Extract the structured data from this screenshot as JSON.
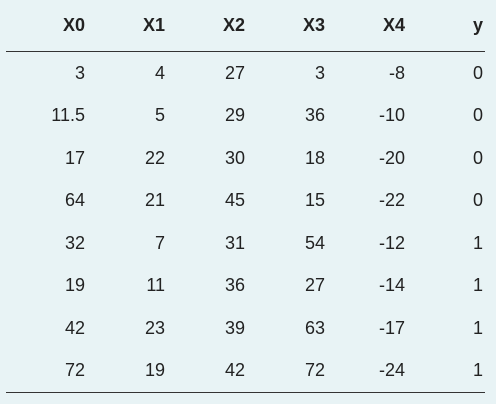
{
  "table": {
    "columns": [
      "X0",
      "X1",
      "X2",
      "X3",
      "X4",
      "y"
    ],
    "rows": [
      [
        "3",
        "4",
        "27",
        "3",
        "-8",
        "0"
      ],
      [
        "11.5",
        "5",
        "29",
        "36",
        "-10",
        "0"
      ],
      [
        "17",
        "22",
        "30",
        "18",
        "-20",
        "0"
      ],
      [
        "64",
        "21",
        "45",
        "15",
        "-22",
        "0"
      ],
      [
        "32",
        "7",
        "31",
        "54",
        "-12",
        "1"
      ],
      [
        "19",
        "11",
        "36",
        "27",
        "-14",
        "1"
      ],
      [
        "42",
        "23",
        "39",
        "63",
        "-17",
        "1"
      ],
      [
        "72",
        "19",
        "42",
        "72",
        "-24",
        "1"
      ]
    ]
  }
}
